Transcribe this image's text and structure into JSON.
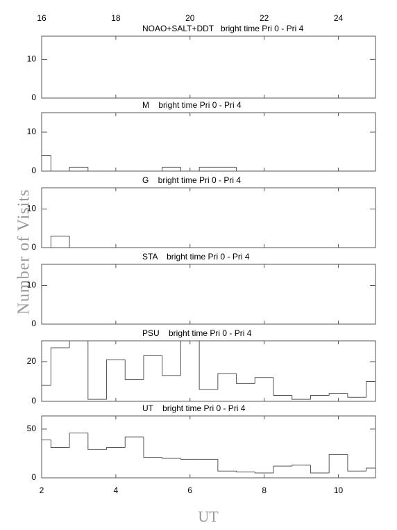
{
  "chart_data": [
    {
      "type": "histogram",
      "title": "NOAO+SALT+DDT   bright time Pri 0 - Pri 4",
      "bins": [
        2,
        2.25,
        2.75,
        3.25,
        3.75,
        4.25,
        4.75,
        5.25,
        5.75,
        6.25,
        6.75,
        7.25,
        7.75,
        8.25,
        8.75,
        9.25,
        9.75,
        10.25,
        10.75,
        11
      ],
      "values": [
        0,
        0,
        0,
        0,
        0,
        0,
        0,
        0,
        0,
        0,
        0,
        0,
        0,
        0,
        0,
        0,
        0,
        0,
        0
      ],
      "xlim": [
        2,
        11
      ],
      "ylim": [
        0,
        16
      ],
      "yticks": [
        0,
        10
      ],
      "x2lim": [
        16,
        25
      ],
      "x2ticks": [
        16,
        18,
        20,
        22,
        24
      ],
      "ylabel": "Number of Visits"
    },
    {
      "type": "histogram",
      "title": "M    bright time Pri 0 - Pri 4",
      "bins": [
        2,
        2.25,
        2.75,
        3.25,
        3.75,
        4.25,
        4.75,
        5.25,
        5.75,
        6.25,
        6.75,
        7.25,
        7.75,
        8.25,
        8.75,
        9.25,
        9.75,
        10.25,
        10.75,
        11
      ],
      "values": [
        4,
        0,
        1,
        0,
        0,
        0,
        0,
        1,
        0,
        1,
        1,
        0,
        0,
        0,
        0,
        0,
        0,
        0,
        0
      ],
      "xlim": [
        2,
        11
      ],
      "ylim": [
        0,
        15
      ],
      "yticks": [
        0,
        10
      ]
    },
    {
      "type": "histogram",
      "title": "G    bright time Pri 0 - Pri 4",
      "bins": [
        2,
        2.25,
        2.75,
        3.25,
        3.75,
        4.25,
        4.75,
        5.25,
        5.75,
        6.25,
        6.75,
        7.25,
        7.75,
        8.25,
        8.75,
        9.25,
        9.75,
        10.25,
        10.75,
        11
      ],
      "values": [
        0,
        3,
        0,
        0,
        0,
        0,
        0,
        0,
        0,
        0,
        0,
        0,
        0,
        0,
        0,
        0,
        0,
        0,
        0
      ],
      "xlim": [
        2,
        11
      ],
      "ylim": [
        0,
        15.5
      ],
      "yticks": [
        0,
        10
      ]
    },
    {
      "type": "histogram",
      "title": "STA    bright time Pri 0 - Pri 4",
      "bins": [
        2,
        2.25,
        2.75,
        3.25,
        3.75,
        4.25,
        4.75,
        5.25,
        5.75,
        6.25,
        6.75,
        7.25,
        7.75,
        8.25,
        8.75,
        9.25,
        9.75,
        10.25,
        10.75,
        11
      ],
      "values": [
        0,
        0,
        0,
        0,
        0,
        0,
        0,
        0,
        0,
        0,
        0,
        0,
        0,
        0,
        0,
        0,
        0,
        0,
        0
      ],
      "xlim": [
        2,
        11
      ],
      "ylim": [
        0,
        15.5
      ],
      "yticks": [
        0,
        10
      ]
    },
    {
      "type": "histogram",
      "title": "PSU    bright time Pri 0 - Pri 4",
      "bins": [
        2,
        2.25,
        2.75,
        3.25,
        3.75,
        4.25,
        4.75,
        5.25,
        5.75,
        6.25,
        6.75,
        7.25,
        7.75,
        8.25,
        8.75,
        9.25,
        9.75,
        10.25,
        10.75,
        11
      ],
      "values": [
        8,
        27,
        32,
        1,
        21,
        11,
        23,
        13,
        32,
        6,
        14,
        9,
        12,
        3,
        1,
        3,
        4,
        2,
        10
      ],
      "xlim": [
        2,
        11
      ],
      "ylim": [
        0,
        30.5
      ],
      "yticks": [
        0,
        20
      ]
    },
    {
      "type": "histogram",
      "title": "UT    bright time Pri 0 - Pri 4",
      "bins": [
        2,
        2.25,
        2.75,
        3.25,
        3.75,
        4.25,
        4.75,
        5.25,
        5.75,
        6.25,
        6.75,
        7.25,
        7.75,
        8.25,
        8.75,
        9.25,
        9.75,
        10.25,
        10.75,
        11
      ],
      "values": [
        39,
        31,
        46,
        29,
        31,
        42,
        21,
        20,
        19,
        19,
        7,
        6,
        5,
        12,
        13,
        5,
        24,
        7,
        10
      ],
      "xlim": [
        2,
        11
      ],
      "ylim": [
        0,
        63.5
      ],
      "yticks": [
        0,
        50
      ],
      "xticks": [
        2,
        4,
        6,
        8,
        10
      ],
      "xlabel": "UT"
    }
  ]
}
